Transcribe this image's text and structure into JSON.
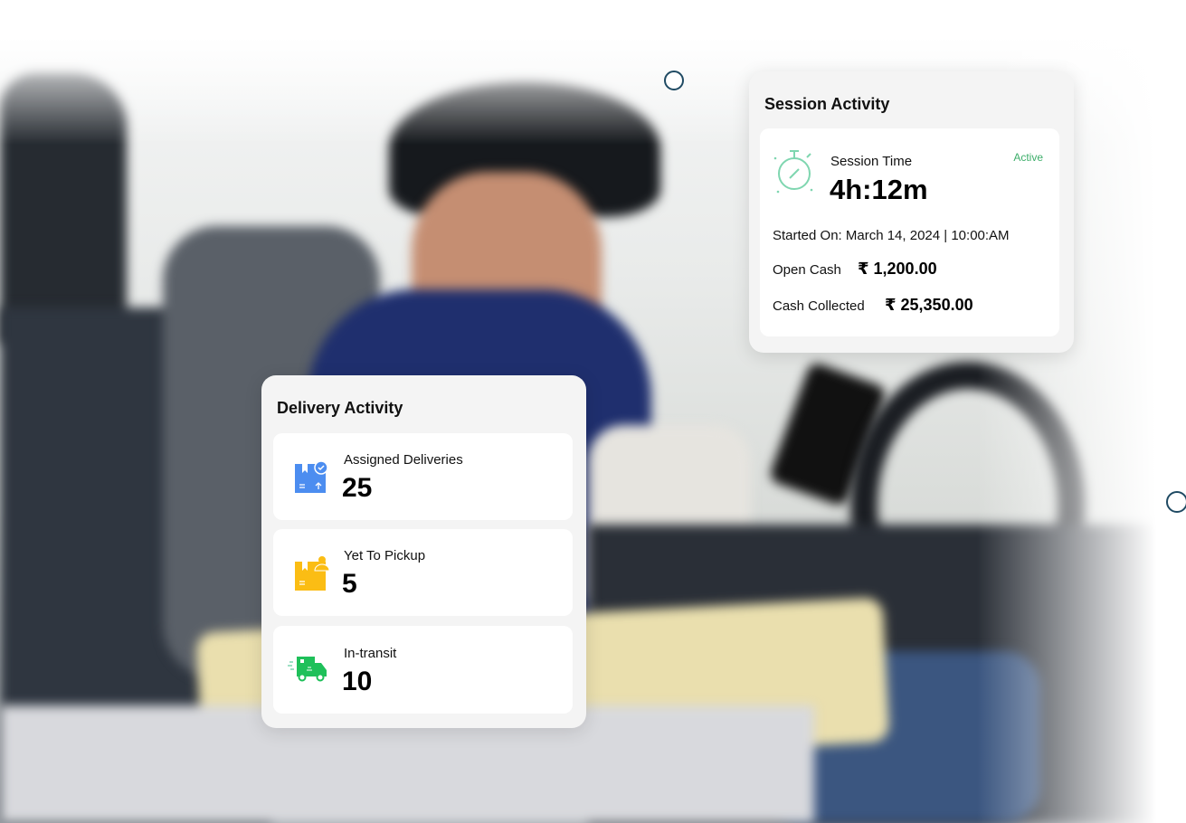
{
  "session": {
    "title": "Session Activity",
    "time_label": "Session Time",
    "time_value": "4h:12m",
    "status": "Active",
    "started": "Started On: March 14, 2024 | 10:00:AM",
    "open_cash_label": "Open Cash",
    "open_cash_value": "₹ 1,200.00",
    "cash_collected_label": "Cash Collected",
    "cash_collected_value": "₹ 25,350.00"
  },
  "delivery": {
    "title": "Delivery Activity",
    "items": [
      {
        "label": "Assigned Deliveries",
        "value": "25",
        "icon": "box-check-icon"
      },
      {
        "label": "Yet To Pickup",
        "value": "5",
        "icon": "box-person-icon"
      },
      {
        "label": "In-transit",
        "value": "10",
        "icon": "truck-icon"
      }
    ]
  },
  "colors": {
    "active": "#3dae6a",
    "blue": "#4c8df0",
    "yellow": "#fbbd14",
    "green": "#1fc05a",
    "timer": "#7fd6b0"
  }
}
